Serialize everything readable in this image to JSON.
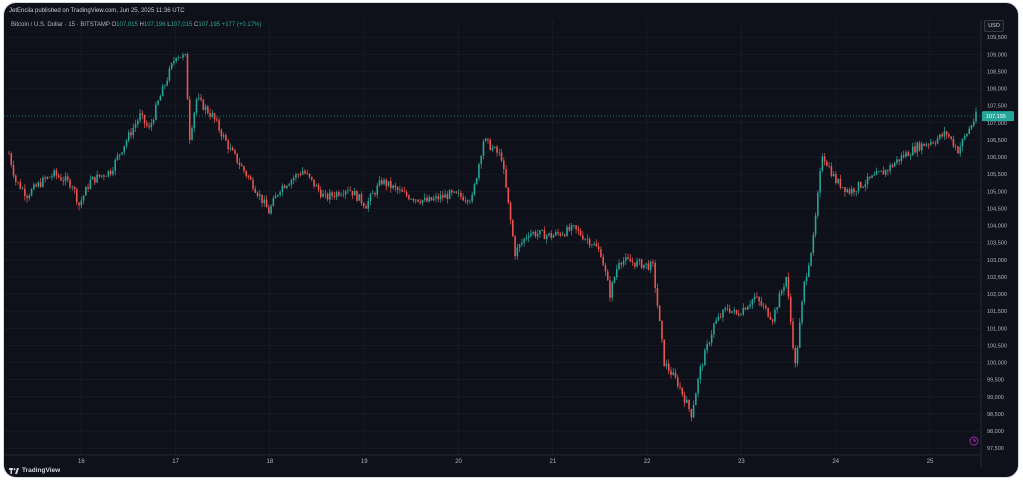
{
  "header": {
    "published": "JetEncila published on TradingView.com, Jun 25, 2025 11:36 UTC"
  },
  "legend": {
    "symbol": "Bitcoin / U.S. Dollar · 15 · BITSTAMP",
    "o_label": "O",
    "o_value": "107,015",
    "h_label": "H",
    "h_value": "107,196",
    "l_label": "L",
    "l_value": "107,015",
    "c_label": "C",
    "c_value": "107,195",
    "change": "+177 (+0.17%)"
  },
  "currency_button": "USD",
  "price_scale": {
    "ticks": [
      "109,500",
      "109,000",
      "108,500",
      "108,000",
      "107,500",
      "107,000",
      "106,500",
      "106,000",
      "105,500",
      "105,000",
      "104,500",
      "104,000",
      "103,500",
      "103,000",
      "102,500",
      "102,000",
      "101,500",
      "101,000",
      "100,500",
      "100,000",
      "99,500",
      "99,000",
      "98,500",
      "98,000",
      "97,500"
    ],
    "last_price_label": "107,195"
  },
  "time_scale": {
    "ticks": [
      "16",
      "17",
      "18",
      "19",
      "20",
      "21",
      "22",
      "23",
      "24",
      "25"
    ]
  },
  "brand": "TradingView",
  "colors": {
    "background": "#0f111a",
    "up": "#26a69a",
    "down": "#ef5350",
    "grid": "#1c1f2b",
    "text": "#b2b5be"
  },
  "chart_data": {
    "type": "candlestick",
    "title": "Bitcoin / U.S. Dollar · 15 · BITSTAMP",
    "ylim": [
      97300,
      110000
    ],
    "x_ticks": [
      "16",
      "17",
      "18",
      "19",
      "20",
      "21",
      "22",
      "23",
      "24",
      "25"
    ],
    "last_price": 107195,
    "path": [
      [
        0,
        106100
      ],
      [
        3,
        105300
      ],
      [
        8,
        104900
      ],
      [
        15,
        105300
      ],
      [
        20,
        105500
      ],
      [
        28,
        105200
      ],
      [
        31,
        104600
      ],
      [
        36,
        105300
      ],
      [
        45,
        105600
      ],
      [
        52,
        106500
      ],
      [
        58,
        107200
      ],
      [
        62,
        106800
      ],
      [
        66,
        107600
      ],
      [
        70,
        108300
      ],
      [
        74,
        109000
      ],
      [
        78,
        108900
      ],
      [
        80,
        106600
      ],
      [
        83,
        107700
      ],
      [
        90,
        107200
      ],
      [
        98,
        106200
      ],
      [
        108,
        105200
      ],
      [
        115,
        104400
      ],
      [
        120,
        105100
      ],
      [
        130,
        105600
      ],
      [
        140,
        104800
      ],
      [
        150,
        105100
      ],
      [
        158,
        104600
      ],
      [
        165,
        105300
      ],
      [
        175,
        104900
      ],
      [
        185,
        104700
      ],
      [
        195,
        104900
      ],
      [
        205,
        104800
      ],
      [
        210,
        106500
      ],
      [
        218,
        106000
      ],
      [
        224,
        103200
      ],
      [
        230,
        103800
      ],
      [
        240,
        103700
      ],
      [
        250,
        103900
      ],
      [
        258,
        103500
      ],
      [
        262,
        103200
      ],
      [
        266,
        102000
      ],
      [
        270,
        103000
      ],
      [
        278,
        102900
      ],
      [
        285,
        102800
      ],
      [
        290,
        100000
      ],
      [
        296,
        99400
      ],
      [
        302,
        98500
      ],
      [
        306,
        99800
      ],
      [
        312,
        101100
      ],
      [
        318,
        101600
      ],
      [
        322,
        101400
      ],
      [
        330,
        101900
      ],
      [
        338,
        101300
      ],
      [
        344,
        102500
      ],
      [
        348,
        99900
      ],
      [
        352,
        102300
      ],
      [
        356,
        103600
      ],
      [
        360,
        106100
      ],
      [
        366,
        105300
      ],
      [
        372,
        105000
      ],
      [
        380,
        105300
      ],
      [
        388,
        105600
      ],
      [
        395,
        106000
      ],
      [
        402,
        106300
      ],
      [
        410,
        106500
      ],
      [
        415,
        106700
      ],
      [
        420,
        106200
      ],
      [
        428,
        107195
      ]
    ],
    "bar_count": 428
  }
}
